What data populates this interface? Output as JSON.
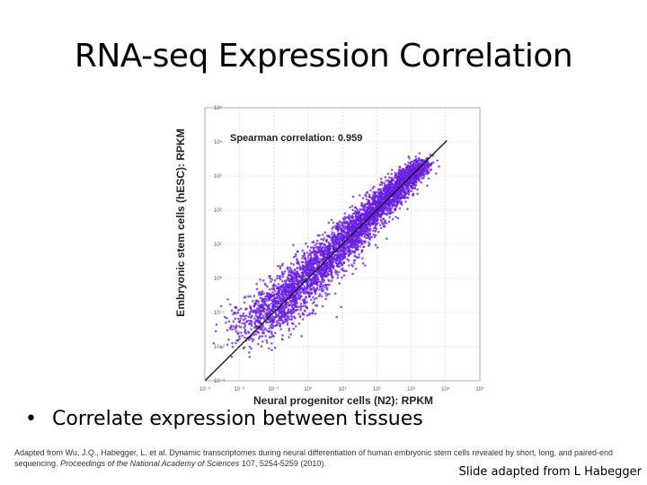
{
  "slide": {
    "title": "RNA-seq Expression Correlation",
    "bullet_symbol": "•",
    "bullet": "Correlate expression between tissues",
    "citation_part1": "Adapted from Wu, J.Q., Habegger, L. et al. Dynamic transcriptomes during neural differentiation of human embryonic stem cells revealed by short, long, and paired-end sequencing.",
    "citation_journal": "Proceedings of the National Academy of Sciences",
    "citation_part2": "107, 5254-5259 (2010).",
    "credit": "Slide adapted from L Habegger"
  },
  "chart_data": {
    "type": "scatter",
    "annotation": "Spearman correlation: 0.959",
    "xlabel": "Neural progenitor cells (N2): RPKM",
    "ylabel": "Embryonic stem cells (hESC): RPKM",
    "x_scale": "log",
    "y_scale": "log",
    "xlim": [
      0.001,
      100000
    ],
    "ylim": [
      0.001,
      100000
    ],
    "x_ticks": [
      "10⁻³",
      "10⁻²",
      "10⁻¹",
      "10⁰",
      "10¹",
      "10²",
      "10³",
      "10⁴",
      "10⁵"
    ],
    "y_ticks": [
      "10⁻³",
      "10⁻²",
      "10⁻¹",
      "10⁰",
      "10¹",
      "10²",
      "10³",
      "10⁴",
      "10⁵"
    ],
    "point_color": "#6a1fe0",
    "diagonal_line": true,
    "grid": true,
    "series": [
      {
        "x": [
          0.01,
          0.02,
          0.05,
          0.1,
          0.2,
          0.5,
          1,
          2,
          5,
          10,
          20,
          50,
          100,
          200,
          500,
          1000,
          2000,
          0.03,
          0.08,
          0.3,
          0.8,
          3,
          8,
          30,
          80,
          300,
          800,
          0.015,
          0.04,
          0.15,
          0.4,
          1.5,
          4,
          15,
          40,
          150,
          400,
          1500,
          0.05,
          0.2,
          1,
          5,
          20,
          100,
          0.1,
          0.5,
          2,
          10,
          50,
          200,
          0.02,
          0.1,
          0.3,
          1,
          3,
          10,
          30,
          100,
          300,
          1000
        ],
        "y": [
          0.02,
          0.01,
          0.08,
          0.3,
          0.1,
          0.9,
          0.6,
          3,
          3,
          15,
          12,
          70,
          60,
          250,
          400,
          1200,
          1800,
          0.1,
          0.04,
          0.6,
          0.4,
          5,
          4,
          50,
          40,
          500,
          600,
          0.04,
          0.02,
          0.5,
          0.2,
          4,
          2,
          30,
          20,
          300,
          200,
          2000,
          0.2,
          0.05,
          3,
          1.5,
          60,
          40,
          0.02,
          2,
          0.8,
          25,
          20,
          150,
          0.005,
          0.5,
          0.1,
          2.5,
          1.5,
          6,
          20,
          120,
          200,
          900
        ]
      }
    ]
  }
}
